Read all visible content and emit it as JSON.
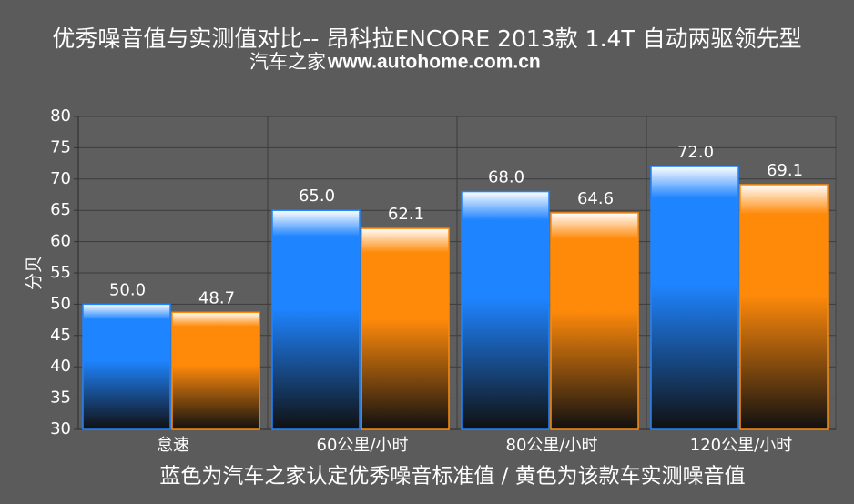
{
  "chart_data": {
    "type": "bar",
    "title": "优秀噪音值与实测值对比-- 昂科拉ENCORE 2013款 1.4T 自动两驱领先型",
    "subtitle": "汽车之家",
    "source": "www.autohome.com.cn",
    "y_label": "分贝",
    "caption": "蓝色为汽车之家认定优秀噪音标准值 / 黄色为该款车实测噪音值",
    "categories": [
      "怠速",
      "60公里/小时",
      "80公里/小时",
      "120公里/小时"
    ],
    "series": [
      {
        "color": "#1e84ff",
        "values": [
          50,
          65,
          68,
          72
        ],
        "value_labels": [
          "50.0",
          "65.0",
          "68.0",
          "72.0"
        ]
      },
      {
        "color": "#ff8a0a",
        "values": [
          48.7,
          62.1,
          64.6,
          69.1
        ],
        "value_labels": [
          "48.7",
          "62.1",
          "64.6",
          "69.1"
        ]
      }
    ],
    "ylim": [
      30,
      80
    ],
    "yticks": [
      30,
      35,
      40,
      45,
      50,
      55,
      60,
      65,
      70,
      75,
      80
    ],
    "grid": true
  }
}
